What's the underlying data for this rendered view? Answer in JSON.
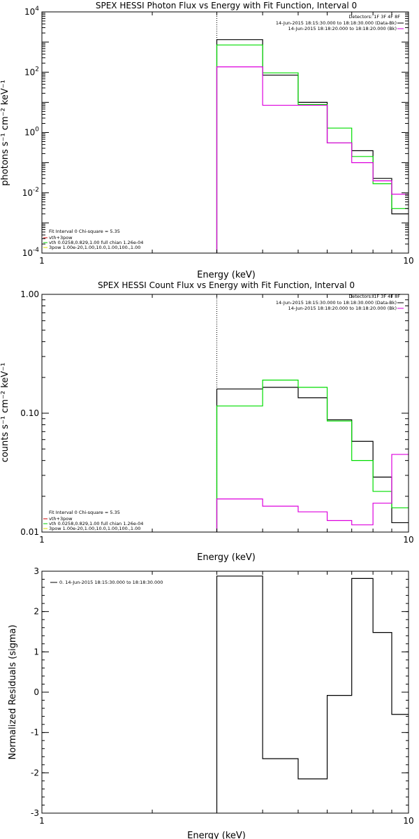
{
  "chart_data": [
    {
      "type": "line",
      "step": true,
      "title": "SPEX HESSI Photon Flux vs Energy with Fit Function, Interval 0",
      "xlabel": "Energy (keV)",
      "ylabel": "photons s⁻¹ cm⁻² keV⁻¹",
      "xscale": "log",
      "yscale": "log",
      "xlim": [
        1,
        10
      ],
      "ylim": [
        0.0001,
        10000
      ],
      "xticks": [
        {
          "value": 1,
          "label": "1"
        },
        {
          "value": 10,
          "label": "10"
        }
      ],
      "yticks": [
        {
          "value": 0.0001,
          "base": "10",
          "exp": "-4"
        },
        {
          "value": 0.01,
          "base": "10",
          "exp": "-2"
        },
        {
          "value": 1,
          "base": "10",
          "exp": "0"
        },
        {
          "value": 100,
          "base": "10",
          "exp": "2"
        },
        {
          "value": 10000,
          "base": "10",
          "exp": "4"
        }
      ],
      "vline_x": 3,
      "edges": [
        3,
        4,
        5,
        6,
        7,
        8,
        9,
        10
      ],
      "legend_detectors": "Detectors: 1F 3F 4F 8F",
      "legend_entries": [
        {
          "text": "14-Jun-2015 18:15:30.000 to 18:18:30.000 (Data-Bk)",
          "color": "#000000"
        },
        {
          "text": "14-Jun-2015 18:18:20.000 to 18:18:20.000 (Bk)",
          "color": "#dd00dd"
        }
      ],
      "fit_lines": [
        {
          "text": "Fit Interval 0   Chi-square = 5.35",
          "color": ""
        },
        {
          "text": "vth+3pow",
          "color": "#cc0000"
        },
        {
          "text": "vth 0.0258,0.829,1.00  full chian 1.26e-04",
          "color": "#00cc00"
        },
        {
          "text": "3pow 1.00e-20,1.00,10.0,1.00,100.,1.00",
          "color": "#dddd00"
        }
      ],
      "series": [
        {
          "color": "#000000",
          "values": [
            1200,
            80,
            10,
            0.45,
            0.25,
            0.03,
            0.002
          ]
        },
        {
          "color": "#00dd00",
          "values": [
            800,
            95,
            8.5,
            1.4,
            0.16,
            0.02,
            0.003
          ]
        },
        {
          "color": "#dd00dd",
          "values": [
            150,
            8,
            8,
            0.45,
            0.1,
            0.025,
            0.009
          ]
        }
      ]
    },
    {
      "type": "line",
      "step": true,
      "title": "SPEX HESSI Count Flux vs Energy with Fit Function, Interval 0",
      "xlabel": "Energy (keV)",
      "ylabel": "counts s⁻¹ cm⁻² keV⁻¹",
      "xscale": "log",
      "yscale": "log",
      "xlim": [
        1,
        10
      ],
      "ylim": [
        0.01,
        1
      ],
      "xticks": [
        {
          "value": 1,
          "label": "1"
        },
        {
          "value": 10,
          "label": "10"
        }
      ],
      "yticks": [
        {
          "value": 0.01,
          "label": "0.01"
        },
        {
          "value": 0.1,
          "label": "0.10"
        },
        {
          "value": 1,
          "label": "1.00"
        }
      ],
      "vline_x": 3,
      "edges": [
        3,
        4,
        5,
        6,
        7,
        8,
        9,
        10
      ],
      "legend_detectors": "Detectors: 1F 3F 4F 8F",
      "legend_entries": [
        {
          "text": "14-Jun-2015 18:15:30.000 to 18:18:30.000 (Data-Bk)",
          "color": "#000000"
        },
        {
          "text": "14-Jun-2015 18:18:20.000 to 18:18:20.000 (Bk)",
          "color": "#dd00dd"
        }
      ],
      "fit_lines": [
        {
          "text": "Fit Interval 0   Chi-square = 5.35",
          "color": ""
        },
        {
          "text": "vth+3pow",
          "color": "#cc0000"
        },
        {
          "text": "vth 0.0258,0.829,1.00  full chian 1.26e-04",
          "color": "#00cc00"
        },
        {
          "text": "3pow 1.00e-20,1.00,10.0,1.00,100.,1.00",
          "color": "#dddd00"
        }
      ],
      "series": [
        {
          "color": "#000000",
          "values": [
            0.16,
            0.165,
            0.135,
            0.088,
            0.058,
            0.029,
            0.012
          ]
        },
        {
          "color": "#00dd00",
          "values": [
            0.115,
            0.19,
            0.165,
            0.086,
            0.04,
            0.022,
            0.016
          ]
        },
        {
          "color": "#dd00dd",
          "values": [
            0.019,
            0.0165,
            0.0148,
            0.0125,
            0.0115,
            0.0175,
            0.045
          ]
        }
      ]
    },
    {
      "type": "line",
      "step": true,
      "title": "",
      "xlabel": "Energy (keV)",
      "ylabel": "Normalized Residuals (sigma)",
      "xscale": "log",
      "yscale": "linear",
      "xlim": [
        1,
        10
      ],
      "ylim": [
        -3,
        3
      ],
      "xticks": [
        {
          "value": 1,
          "label": "1"
        },
        {
          "value": 10,
          "label": "10"
        }
      ],
      "yticks": [
        {
          "value": -3,
          "label": "-3"
        },
        {
          "value": -2,
          "label": "-2"
        },
        {
          "value": -1,
          "label": "-1"
        },
        {
          "value": 0,
          "label": "0"
        },
        {
          "value": 1,
          "label": "1"
        },
        {
          "value": 2,
          "label": "2"
        },
        {
          "value": 3,
          "label": "3"
        }
      ],
      "vline_x": null,
      "edges": [
        3,
        4,
        5,
        6,
        7,
        8,
        9,
        10
      ],
      "legend_entries": [
        {
          "text": "0. 14-Jun-2015 18:15:30.000 to 18:18:30.000",
          "color": "#000000"
        }
      ],
      "series": [
        {
          "color": "#000000",
          "values": [
            2.88,
            -1.65,
            -2.15,
            -0.08,
            2.82,
            1.48,
            -0.55
          ]
        }
      ]
    }
  ]
}
